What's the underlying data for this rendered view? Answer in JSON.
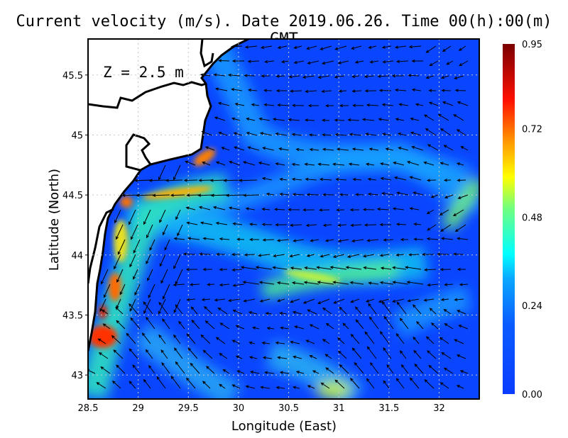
{
  "title": "Current velocity (m/s). Date 2019.06.26. Time 00(h):00(m) GMT",
  "depth_label": "Z = 2.5 m",
  "chart_data": {
    "type": "heatmap",
    "subtype": "vector-field",
    "title": "Current velocity (m/s). Date 2019.06.26. Time 00(h):00(m) GMT",
    "xlabel": "Longitude (East)",
    "ylabel": "Latitude (North)",
    "xlim": [
      28.5,
      32.4
    ],
    "ylim": [
      42.8,
      45.8
    ],
    "xticks": [
      "28.5",
      "29",
      "29.5",
      "30",
      "30.5",
      "31",
      "31.5",
      "32"
    ],
    "yticks": [
      "43",
      "43.5",
      "44",
      "44.5",
      "45",
      "45.5"
    ],
    "grid": true,
    "colorbar": {
      "min": 0.0,
      "max": 0.95,
      "ticks": [
        "0.00",
        "0.24",
        "0.48",
        "0.72",
        "0.95"
      ],
      "placement": "right"
    },
    "colors": {
      "low": "#0a3cff",
      "mid": "#00e6ff",
      "midhigh": "#ffff00",
      "high": "#ff1a00",
      "max": "#7f0000",
      "land": "#ffffff"
    },
    "hotspots": [
      {
        "lon": 29.65,
        "lat": 44.85,
        "speed": 0.75
      },
      {
        "lon": 29.3,
        "lat": 44.52,
        "speed": 0.7
      },
      {
        "lon": 28.85,
        "lat": 44.45,
        "speed": 0.72
      },
      {
        "lon": 28.65,
        "lat": 43.75,
        "speed": 0.8
      },
      {
        "lon": 28.6,
        "lat": 43.3,
        "speed": 0.9
      },
      {
        "lon": 31.2,
        "lat": 43.85,
        "speed": 0.5
      },
      {
        "lon": 32.2,
        "lat": 44.4,
        "speed": 0.45
      }
    ]
  }
}
